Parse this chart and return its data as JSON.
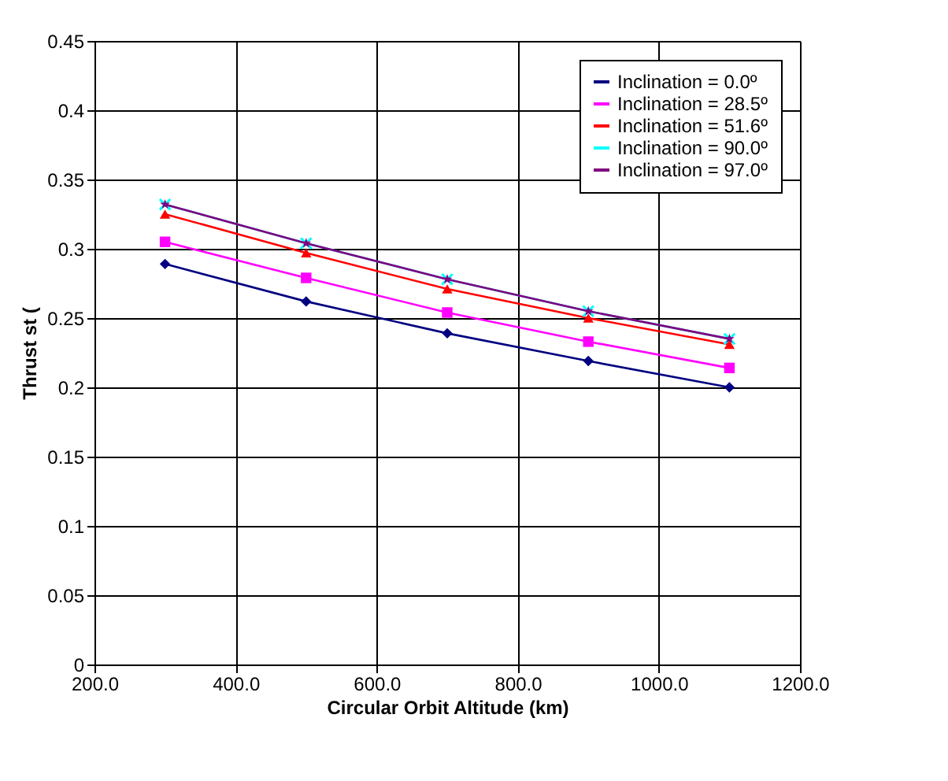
{
  "chart_data": {
    "type": "line",
    "xlabel": "Circular Orbit Altitude (km)",
    "ylabel": "Thrust st (",
    "x": [
      300,
      500,
      700,
      900,
      1100
    ],
    "series": [
      {
        "name": "Inclination = 0.0º",
        "color": "#000080",
        "marker": "diamond",
        "values": [
          0.289,
          0.262,
          0.239,
          0.219,
          0.2
        ]
      },
      {
        "name": "Inclination = 28.5º",
        "color": "#ff00ff",
        "marker": "square",
        "values": [
          0.305,
          0.279,
          0.254,
          0.233,
          0.214
        ]
      },
      {
        "name": "Inclination = 51.6º",
        "color": "#ff0000",
        "marker": "triangle",
        "values": [
          0.325,
          0.297,
          0.271,
          0.25,
          0.231
        ]
      },
      {
        "name": "Inclination = 90.0º",
        "color": "#00ffff",
        "marker": "cross",
        "values": [
          0.332,
          0.304,
          0.278,
          0.255,
          0.235
        ]
      },
      {
        "name": "Inclination = 97.0º",
        "color": "#800080",
        "marker": "star",
        "values": [
          0.332,
          0.304,
          0.278,
          0.255,
          0.235
        ]
      }
    ],
    "xlim": [
      200,
      1200
    ],
    "xticks": [
      {
        "value": 200,
        "label": "200.0"
      },
      {
        "value": 400,
        "label": "400.0"
      },
      {
        "value": 600,
        "label": "600.0"
      },
      {
        "value": 800,
        "label": "800.0"
      },
      {
        "value": 1000,
        "label": "1000.0"
      },
      {
        "value": 1200,
        "label": "1200.0"
      }
    ],
    "ylim": [
      0,
      0.45
    ],
    "yticks": [
      0,
      0.05,
      0.1,
      0.15,
      0.2,
      0.25,
      0.3,
      0.35,
      0.4,
      0.45
    ],
    "grid": true,
    "legend": "top right",
    "line_style": "solid"
  }
}
